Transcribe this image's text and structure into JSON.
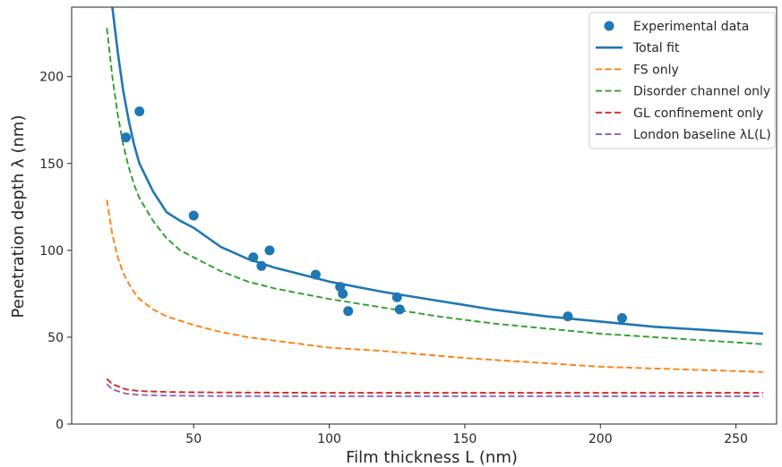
{
  "chart_data": {
    "type": "line",
    "xlabel": "Film thickness L (nm)",
    "ylabel": "Penetration depth λ (nm)",
    "xlim": [
      5,
      265
    ],
    "ylim": [
      0,
      240
    ],
    "x_ticks": [
      50,
      100,
      150,
      200,
      250
    ],
    "y_ticks": [
      0,
      50,
      100,
      150,
      200
    ],
    "grid": false,
    "legend_position": "top-right",
    "scatter": {
      "name": "Experimental data",
      "color": "#1f77b4",
      "x": [
        25,
        30,
        50,
        72,
        75,
        78,
        95,
        104,
        105,
        107,
        125,
        126,
        188,
        208
      ],
      "y": [
        165,
        180,
        120,
        96,
        91,
        100,
        86,
        79,
        75,
        65,
        73,
        66,
        62,
        61
      ]
    },
    "series": [
      {
        "name": "Total fit",
        "color": "#1f77b4",
        "style": "solid",
        "x": [
          20,
          22,
          24,
          26,
          28,
          30,
          35,
          40,
          45,
          50,
          60,
          70,
          80,
          100,
          120,
          140,
          160,
          180,
          200,
          220,
          240,
          260
        ],
        "y": [
          240,
          214,
          192,
          175,
          161,
          150,
          134,
          122,
          117,
          113,
          102,
          95,
          90,
          82,
          76,
          71,
          66,
          62,
          59,
          56,
          54,
          52
        ]
      },
      {
        "name": "FS only",
        "color": "#ff7f0e",
        "style": "dashed",
        "x": [
          18,
          20,
          22,
          24,
          26,
          28,
          30,
          35,
          40,
          50,
          60,
          70,
          80,
          100,
          120,
          150,
          180,
          200,
          220,
          240,
          260
        ],
        "y": [
          129,
          109,
          96,
          87,
          81,
          76,
          72,
          66,
          62,
          57,
          53,
          50,
          48,
          44,
          42,
          38,
          35,
          33,
          32,
          31,
          30
        ]
      },
      {
        "name": "Disorder channel only",
        "color": "#2ca02c",
        "style": "dashed",
        "x": [
          18,
          20,
          22,
          24,
          26,
          28,
          30,
          35,
          40,
          45,
          50,
          60,
          70,
          80,
          100,
          120,
          140,
          160,
          180,
          200,
          220,
          240,
          260
        ],
        "y": [
          228,
          200,
          178,
          161,
          148,
          138,
          130,
          117,
          107,
          100,
          96,
          88,
          82,
          78,
          72,
          67,
          62,
          58,
          55,
          52,
          50,
          48,
          46
        ]
      },
      {
        "name": "GL confinement only",
        "color": "#d62728",
        "style": "dashed",
        "x": [
          18,
          20,
          25,
          30,
          40,
          50,
          60,
          80,
          100,
          150,
          200,
          260
        ],
        "y": [
          26,
          23,
          20,
          19,
          18.5,
          18.3,
          18.2,
          18.1,
          18,
          18,
          18,
          18
        ]
      },
      {
        "name": "London baseline λL(L)",
        "color": "#9467bd",
        "style": "dashed",
        "x": [
          18,
          20,
          25,
          30,
          40,
          50,
          60,
          80,
          100,
          150,
          200,
          260
        ],
        "y": [
          23,
          20,
          17.5,
          16.8,
          16.4,
          16.2,
          16.1,
          16,
          16,
          16,
          16,
          16
        ]
      }
    ],
    "legend": [
      {
        "label": "Experimental data",
        "marker": "circle",
        "color": "#1f77b4"
      },
      {
        "label": "Total fit",
        "marker": "solid",
        "color": "#1f77b4"
      },
      {
        "label": "FS only",
        "marker": "dashed",
        "color": "#ff7f0e"
      },
      {
        "label": "Disorder channel only",
        "marker": "dashed",
        "color": "#2ca02c"
      },
      {
        "label": "GL confinement only",
        "marker": "dashed",
        "color": "#d62728"
      },
      {
        "label": "London baseline λL(L)",
        "marker": "dashed",
        "color": "#9467bd"
      }
    ]
  }
}
